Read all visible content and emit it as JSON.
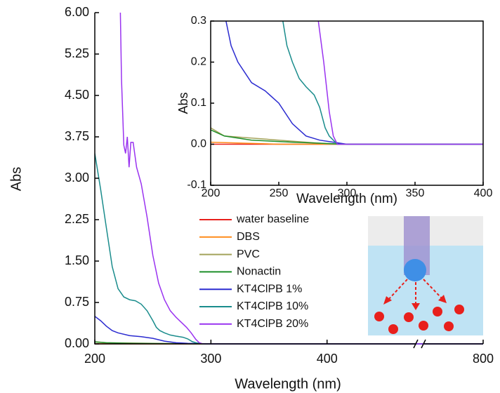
{
  "chart_data": [
    {
      "type": "line",
      "xlabel": "Wavelength (nm)",
      "ylabel": "Abs",
      "xlim": [
        200,
        800
      ],
      "xbreak": [
        480,
        750
      ],
      "xticks": [
        200,
        300,
        400,
        800
      ],
      "ylim": [
        0,
        6
      ],
      "yticks": [
        {
          "value": 0,
          "label": "0.00"
        },
        {
          "value": 0.75,
          "label": "0.75"
        },
        {
          "value": 1.5,
          "label": "1.50"
        },
        {
          "value": 2.25,
          "label": "2.25"
        },
        {
          "value": 3,
          "label": "3.00"
        },
        {
          "value": 3.75,
          "label": "3.75"
        },
        {
          "value": 4.5,
          "label": "4.50"
        },
        {
          "value": 5.25,
          "label": "5.25"
        },
        {
          "value": 6,
          "label": "6.00"
        }
      ],
      "series": [
        {
          "name": "water baseline",
          "color": "#e8201c",
          "x": [
            200,
            300,
            400,
            800
          ],
          "values": [
            0,
            0,
            0,
            0
          ]
        },
        {
          "name": "DBS",
          "color": "#ff8c1a",
          "x": [
            200,
            250,
            300,
            400,
            800
          ],
          "values": [
            0.005,
            0,
            0,
            0,
            0
          ]
        },
        {
          "name": "PVC",
          "color": "#a3a35a",
          "x": [
            200,
            210,
            230,
            250,
            290,
            400,
            800
          ],
          "values": [
            0.04,
            0.02,
            0.015,
            0.01,
            0,
            0,
            0
          ]
        },
        {
          "name": "Nonactin",
          "color": "#1f8f2a",
          "x": [
            200,
            210,
            230,
            260,
            300,
            400,
            800
          ],
          "values": [
            0.035,
            0.02,
            0.01,
            0.005,
            0,
            0,
            0
          ]
        },
        {
          "name": "KT4ClPB 1%",
          "color": "#2b2bd0",
          "x": [
            200,
            205,
            210,
            215,
            220,
            230,
            240,
            250,
            260,
            270,
            280,
            290,
            300,
            400,
            800
          ],
          "values": [
            0.5,
            0.42,
            0.32,
            0.24,
            0.2,
            0.15,
            0.13,
            0.1,
            0.05,
            0.02,
            0.01,
            0.005,
            0,
            0,
            0
          ]
        },
        {
          "name": "KT4ClPB 10%",
          "color": "#1a8c8c",
          "x": [
            200,
            205,
            210,
            215,
            220,
            225,
            230,
            235,
            240,
            245,
            250,
            253,
            256,
            260,
            265,
            270,
            276,
            280,
            284,
            287,
            293,
            300,
            400,
            800
          ],
          "values": [
            3.45,
            2.8,
            2.1,
            1.4,
            1.0,
            0.85,
            0.8,
            0.78,
            0.72,
            0.6,
            0.42,
            0.3,
            0.24,
            0.2,
            0.16,
            0.14,
            0.12,
            0.09,
            0.04,
            0.02,
            0,
            0,
            0,
            0
          ]
        },
        {
          "name": "KT4ClPB 20%",
          "color": "#9a33f0",
          "x": [
            222,
            223,
            225,
            226.5,
            228,
            229.5,
            231,
            233,
            236,
            240,
            245,
            250,
            255,
            260,
            265,
            270,
            275,
            279,
            283,
            287,
            290,
            293,
            300,
            400,
            800
          ],
          "values": [
            6.0,
            4.8,
            3.6,
            3.45,
            3.75,
            3.2,
            3.65,
            3.65,
            3.2,
            2.9,
            2.3,
            1.6,
            1.1,
            0.8,
            0.6,
            0.48,
            0.38,
            0.3,
            0.2,
            0.08,
            0.02,
            0,
            0,
            0,
            0
          ]
        }
      ]
    },
    {
      "type": "inset",
      "xlabel": "Wavelength (nm)",
      "ylabel": "Abs",
      "xlim": [
        200,
        400
      ],
      "xticks": [
        200,
        250,
        300,
        350,
        400
      ],
      "ylim": [
        -0.1,
        0.3
      ],
      "yticks": [
        -0.1,
        {
          "value": 0,
          "label": "0.0"
        },
        0.1,
        0.2,
        0.3
      ]
    }
  ]
}
